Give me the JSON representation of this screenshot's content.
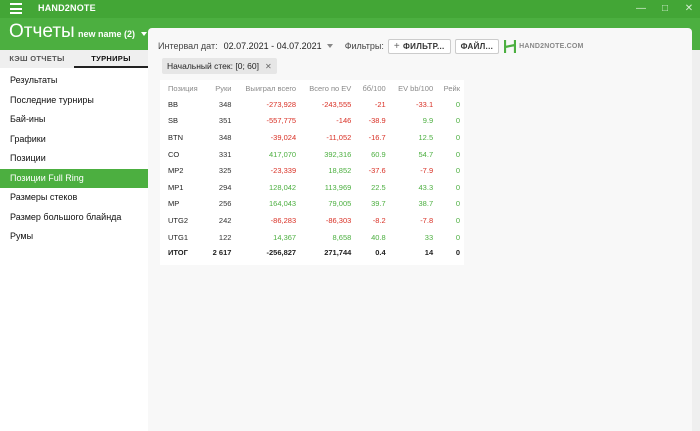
{
  "app": {
    "name": "HAND2NOTE"
  },
  "window_controls": [
    "—",
    "□",
    "✕"
  ],
  "header": {
    "title": "Отчеты",
    "report_name": "new name (2)"
  },
  "tabs": [
    {
      "label": "КЭШ ОТЧЕТЫ",
      "active": false
    },
    {
      "label": "ТУРНИРЫ",
      "active": true
    }
  ],
  "nav": [
    {
      "label": "Результаты"
    },
    {
      "label": "Последние турниры"
    },
    {
      "label": "Бай-ины"
    },
    {
      "label": "Графики"
    },
    {
      "label": "Позиции"
    },
    {
      "label": "Позиции Full Ring",
      "selected": true
    },
    {
      "label": "Размеры стеков"
    },
    {
      "label": "Размер большого блайнда"
    },
    {
      "label": "Румы"
    }
  ],
  "filters": {
    "interval_label": "Интервал дат:",
    "date_range": "02.07.2021 - 04.07.2021",
    "filters_label": "Фильтры:",
    "filter_button": "ФИЛЬТР...",
    "file_button": "ФАЙЛ...",
    "logo_text": "HAND2NOTE.COM"
  },
  "chip": {
    "label": "Начальный стек: [0; 60]"
  },
  "colors": {
    "accent": "#4caf40",
    "negative": "#d93025",
    "positive": "#4caf40"
  },
  "table": {
    "headers": [
      "Позиция",
      "Руки",
      "Выиграл всего",
      "Всего по EV",
      "бб/100",
      "EV bb/100",
      "Рейк"
    ],
    "rows": [
      [
        "BB",
        "348",
        "-273,928",
        "-243,555",
        "-21",
        "-33.1",
        "0"
      ],
      [
        "SB",
        "351",
        "-557,775",
        "-146",
        "-38.9",
        "9.9",
        "0"
      ],
      [
        "BTN",
        "348",
        "-39,024",
        "-11,052",
        "-16.7",
        "12.5",
        "0"
      ],
      [
        "CO",
        "331",
        "417,070",
        "392,316",
        "60.9",
        "54.7",
        "0"
      ],
      [
        "MP2",
        "325",
        "-23,339",
        "18,852",
        "-37.6",
        "-7.9",
        "0"
      ],
      [
        "MP1",
        "294",
        "128,042",
        "113,969",
        "22.5",
        "43.3",
        "0"
      ],
      [
        "MP",
        "256",
        "164,043",
        "79,005",
        "39.7",
        "38.7",
        "0"
      ],
      [
        "UTG2",
        "242",
        "-86,283",
        "-86,303",
        "-8.2",
        "-7.8",
        "0"
      ],
      [
        "UTG1",
        "122",
        "14,367",
        "8,658",
        "40.8",
        "33",
        "0"
      ]
    ],
    "total": [
      "ИТОГ",
      "2 617",
      "-256,827",
      "271,744",
      "0.4",
      "14",
      "0"
    ]
  }
}
